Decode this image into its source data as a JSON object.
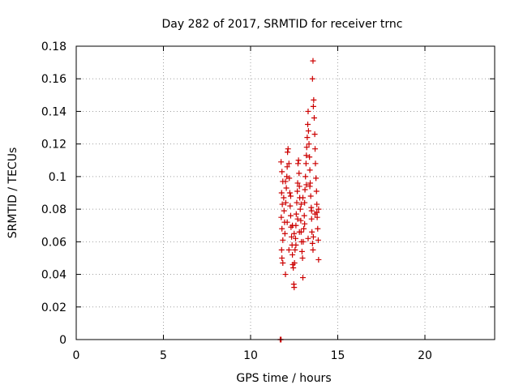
{
  "chart_data": {
    "type": "scatter",
    "title": "Day 282 of 2017, SRMTID for receiver trnc",
    "xlabel": "GPS time / hours",
    "ylabel": "SRMTID / TECUs",
    "xlim": [
      0,
      24
    ],
    "ylim": [
      0,
      0.18
    ],
    "x_ticks": [
      0,
      5,
      10,
      15,
      20
    ],
    "x_tick_labels": [
      "0",
      "5",
      "10",
      "15",
      "20"
    ],
    "y_ticks": [
      0,
      0.02,
      0.04,
      0.06,
      0.08,
      0.1,
      0.12,
      0.14,
      0.16,
      0.18
    ],
    "y_tick_labels": [
      "0",
      "0.02",
      "0.04",
      "0.06",
      "0.08",
      "0.1",
      "0.12",
      "0.14",
      "0.16",
      "0.18"
    ],
    "grid": true,
    "marker": "plus",
    "color": "#cc0000",
    "series": [
      {
        "points": [
          [
            11.7,
            0.0
          ],
          [
            11.75,
            0.0
          ],
          [
            11.75,
            0.109
          ],
          [
            11.8,
            0.103
          ],
          [
            11.85,
            0.097
          ],
          [
            11.78,
            0.09
          ],
          [
            11.82,
            0.083
          ],
          [
            11.76,
            0.075
          ],
          [
            11.8,
            0.068
          ],
          [
            11.85,
            0.061
          ],
          [
            11.78,
            0.055
          ],
          [
            11.8,
            0.05
          ],
          [
            11.85,
            0.047
          ],
          [
            11.9,
            0.087
          ],
          [
            11.92,
            0.079
          ],
          [
            11.95,
            0.072
          ],
          [
            11.97,
            0.065
          ],
          [
            12.0,
            0.04
          ],
          [
            12.02,
            0.084
          ],
          [
            12.05,
            0.093
          ],
          [
            12.08,
            0.1
          ],
          [
            12.1,
            0.106
          ],
          [
            12.12,
            0.115
          ],
          [
            12.15,
            0.117
          ],
          [
            12.2,
            0.108
          ],
          [
            12.22,
            0.099
          ],
          [
            12.25,
            0.09
          ],
          [
            12.27,
            0.082
          ],
          [
            12.3,
            0.076
          ],
          [
            12.32,
            0.069
          ],
          [
            12.35,
            0.063
          ],
          [
            12.38,
            0.058
          ],
          [
            12.4,
            0.052
          ],
          [
            12.42,
            0.046
          ],
          [
            12.45,
            0.044
          ],
          [
            12.48,
            0.034
          ],
          [
            12.5,
            0.032
          ],
          [
            12.52,
            0.047
          ],
          [
            12.55,
            0.055
          ],
          [
            12.58,
            0.062
          ],
          [
            12.6,
            0.07
          ],
          [
            12.62,
            0.077
          ],
          [
            12.65,
            0.084
          ],
          [
            12.68,
            0.091
          ],
          [
            12.7,
            0.096
          ],
          [
            12.72,
            0.108
          ],
          [
            12.75,
            0.11
          ],
          [
            12.78,
            0.102
          ],
          [
            12.8,
            0.094
          ],
          [
            12.82,
            0.087
          ],
          [
            12.85,
            0.08
          ],
          [
            12.88,
            0.073
          ],
          [
            12.9,
            0.066
          ],
          [
            12.92,
            0.06
          ],
          [
            12.95,
            0.054
          ],
          [
            12.98,
            0.05
          ],
          [
            13.0,
            0.038
          ],
          [
            13.02,
            0.06
          ],
          [
            13.05,
            0.068
          ],
          [
            13.08,
            0.076
          ],
          [
            13.1,
            0.084
          ],
          [
            13.12,
            0.092
          ],
          [
            13.15,
            0.1
          ],
          [
            13.18,
            0.108
          ],
          [
            13.2,
            0.113
          ],
          [
            13.22,
            0.118
          ],
          [
            13.25,
            0.124
          ],
          [
            13.28,
            0.132
          ],
          [
            13.3,
            0.14
          ],
          [
            13.32,
            0.128
          ],
          [
            13.35,
            0.12
          ],
          [
            13.38,
            0.112
          ],
          [
            13.4,
            0.104
          ],
          [
            13.42,
            0.096
          ],
          [
            13.45,
            0.088
          ],
          [
            13.48,
            0.081
          ],
          [
            13.5,
            0.074
          ],
          [
            13.52,
            0.066
          ],
          [
            13.55,
            0.059
          ],
          [
            13.58,
            0.055
          ],
          [
            13.6,
            0.143
          ],
          [
            13.62,
            0.147
          ],
          [
            13.65,
            0.136
          ],
          [
            13.68,
            0.126
          ],
          [
            13.7,
            0.117
          ],
          [
            13.72,
            0.108
          ],
          [
            13.75,
            0.099
          ],
          [
            13.78,
            0.091
          ],
          [
            13.8,
            0.083
          ],
          [
            13.82,
            0.075
          ],
          [
            13.85,
            0.068
          ],
          [
            13.88,
            0.061
          ],
          [
            13.9,
            0.049
          ],
          [
            13.55,
            0.16
          ],
          [
            13.58,
            0.171
          ],
          [
            12.1,
            0.072
          ],
          [
            12.3,
            0.088
          ],
          [
            12.5,
            0.065
          ],
          [
            12.7,
            0.074
          ],
          [
            12.9,
            0.083
          ],
          [
            13.1,
            0.071
          ],
          [
            13.3,
            0.062
          ],
          [
            13.5,
            0.079
          ],
          [
            13.7,
            0.077
          ],
          [
            13.9,
            0.08
          ],
          [
            12.0,
            0.097
          ],
          [
            12.2,
            0.055
          ],
          [
            12.4,
            0.07
          ],
          [
            12.6,
            0.058
          ],
          [
            12.8,
            0.066
          ],
          [
            13.0,
            0.087
          ],
          [
            13.2,
            0.095
          ],
          [
            13.4,
            0.094
          ],
          [
            13.6,
            0.063
          ],
          [
            13.8,
            0.078
          ]
        ]
      }
    ]
  }
}
